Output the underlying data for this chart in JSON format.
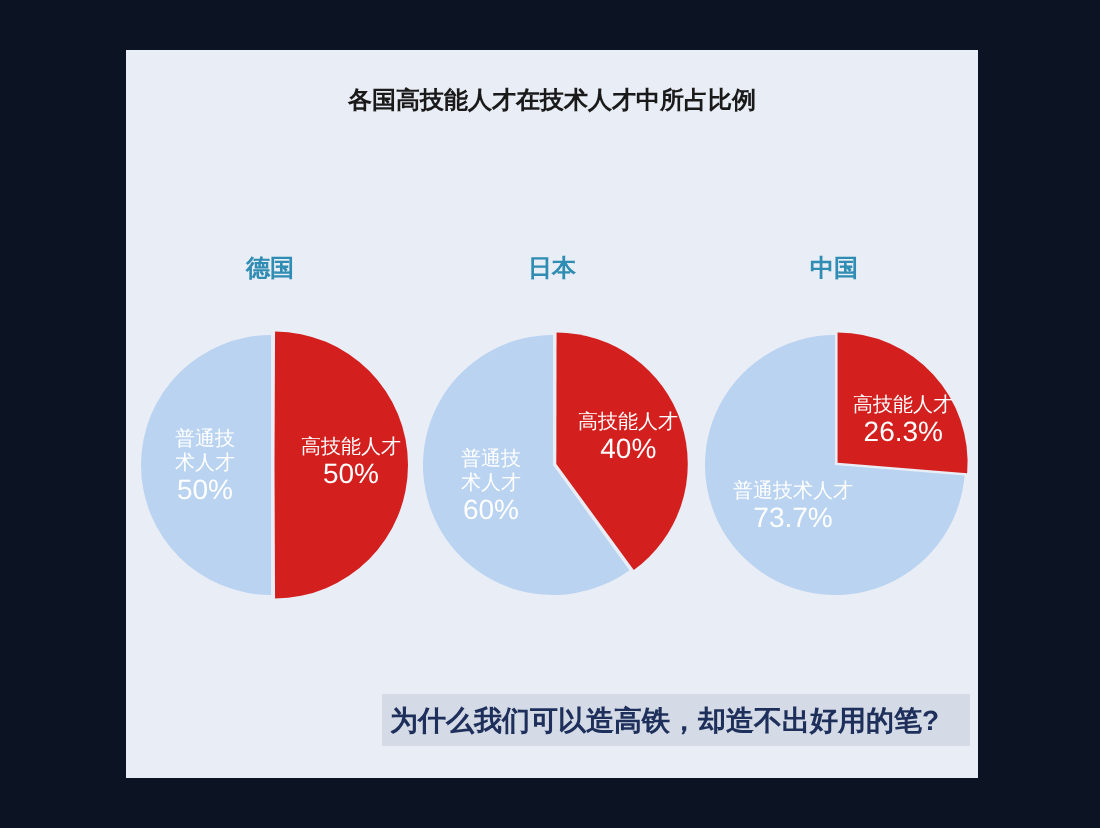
{
  "chart_data": [
    {
      "type": "other",
      "title": "各国高技能人才在技术人才中所占比例",
      "annotations": [
        "为什么我们可以造高铁，却造不出好用的笔?"
      ]
    },
    {
      "type": "pie",
      "title": "德国",
      "categories": [
        "高技能人才",
        "普通技术人才"
      ],
      "values": [
        50,
        50
      ],
      "colors": [
        "#d41f1f",
        "#b9d3f1"
      ],
      "value_labels": [
        "50%",
        "50%"
      ]
    },
    {
      "type": "pie",
      "title": "日本",
      "categories": [
        "高技能人才",
        "普通技术人才"
      ],
      "values": [
        40,
        60
      ],
      "colors": [
        "#d41f1f",
        "#b9d3f1"
      ],
      "value_labels": [
        "40%",
        "60%"
      ]
    },
    {
      "type": "pie",
      "title": "中国",
      "categories": [
        "高技能人才",
        "普通技术人才"
      ],
      "values": [
        26.3,
        73.7
      ],
      "colors": [
        "#d41f1f",
        "#b9d3f1"
      ],
      "value_labels": [
        "26.3%",
        "73.7%"
      ]
    }
  ]
}
